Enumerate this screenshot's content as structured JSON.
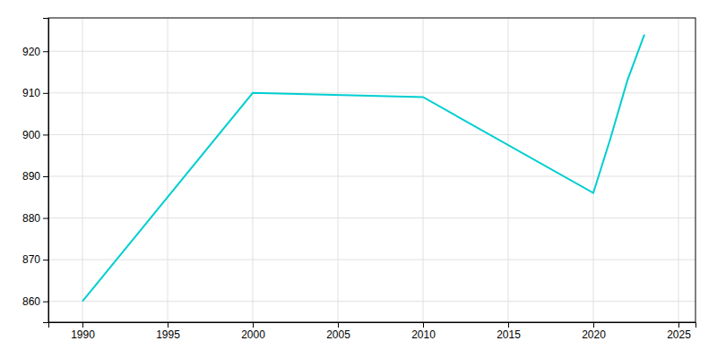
{
  "chart_data": {
    "type": "line",
    "x": [
      1990,
      2000,
      2010,
      2020,
      2021,
      2022,
      2023
    ],
    "values": [
      860,
      910,
      909,
      886,
      899,
      913,
      924
    ],
    "color": "#00CED1",
    "xlim": [
      1988,
      2026
    ],
    "ylim": [
      855,
      928
    ],
    "xticks": [
      1990,
      1995,
      2000,
      2005,
      2010,
      2015,
      2020,
      2025
    ],
    "yticks": [
      860,
      870,
      880,
      890,
      900,
      910,
      920
    ],
    "grid": true
  }
}
